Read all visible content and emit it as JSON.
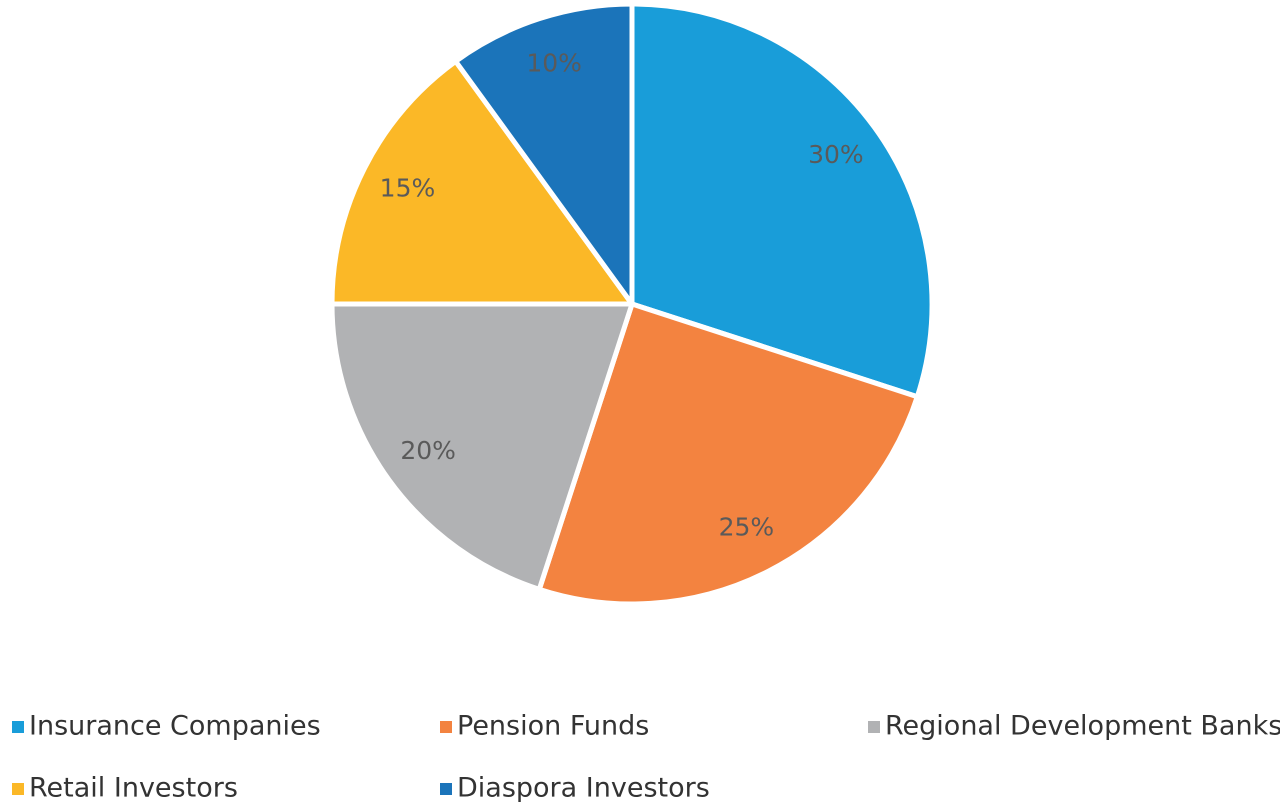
{
  "chart_data": {
    "type": "pie",
    "categories": [
      "Insurance Companies",
      "Pension Funds",
      "Regional Development Banks",
      "Retail Investors",
      "Diaspora Investors"
    ],
    "values": [
      30,
      25,
      20,
      15,
      10
    ],
    "value_labels": [
      "30%",
      "25%",
      "20%",
      "15%",
      "10%"
    ],
    "colors": [
      "#199dd9",
      "#f38340",
      "#b1b2b4",
      "#fbb827",
      "#1b74ba"
    ],
    "legend": "bottom"
  }
}
